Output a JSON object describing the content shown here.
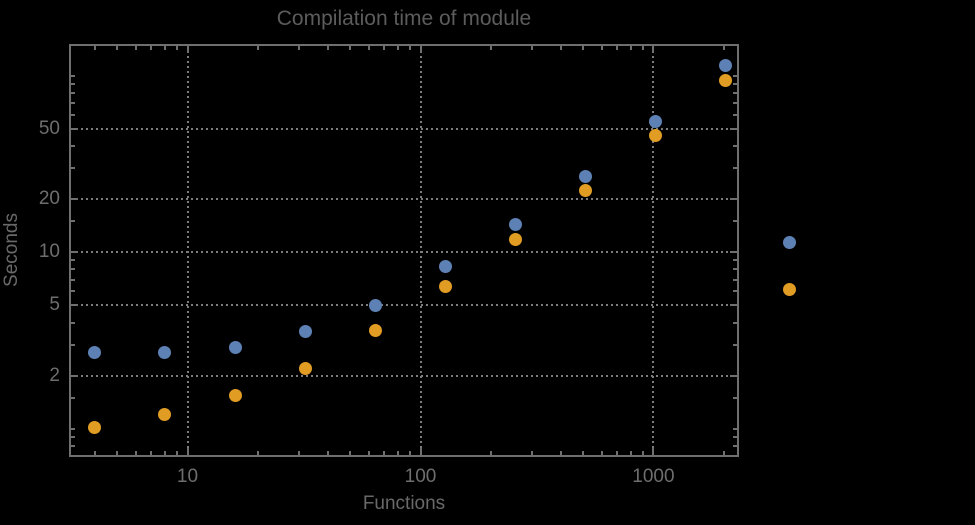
{
  "chart_data": {
    "type": "scatter",
    "title": "Compilation time of module",
    "xlabel": "Functions",
    "ylabel": "Seconds",
    "x_scale": "log",
    "y_scale": "log",
    "x_range": [
      3.1,
      2330
    ],
    "y_range": [
      0.69,
      152
    ],
    "grid": "dotted",
    "legend_position": "right-outside",
    "x": [
      4,
      8,
      16,
      32,
      64,
      128,
      256,
      512,
      1024,
      2048
    ],
    "series": [
      {
        "name": "series-blue",
        "color": "#5E81B5",
        "values": [
          2.7,
          2.72,
          2.88,
          3.55,
          5.0,
          8.3,
          14.4,
          27,
          55,
          115
        ]
      },
      {
        "name": "series-orange",
        "color": "#E19C24",
        "values": [
          1.02,
          1.2,
          1.55,
          2.2,
          3.6,
          6.4,
          11.8,
          22.5,
          46,
          94
        ]
      }
    ],
    "x_ticks": [
      {
        "value": 10,
        "label": "10"
      },
      {
        "value": 100,
        "label": "100"
      },
      {
        "value": 1000,
        "label": "1000"
      }
    ],
    "y_ticks": [
      {
        "value": 2,
        "label": "2"
      },
      {
        "value": 5,
        "label": "5"
      },
      {
        "value": 10,
        "label": "10"
      },
      {
        "value": 20,
        "label": "20"
      },
      {
        "value": 50,
        "label": "50"
      }
    ],
    "legend": {
      "markers": [
        {
          "series": "series-blue",
          "color": "#5E81B5",
          "label": ""
        },
        {
          "series": "series-orange",
          "color": "#E19C24",
          "label": ""
        }
      ]
    }
  },
  "colors": {
    "background": "#000000",
    "frame": "#6f6f6f",
    "grid": "#7d7d7d",
    "tick_text": "#6e6e6e",
    "title_text": "#5c5c5c",
    "axis_label_text": "#696969"
  }
}
